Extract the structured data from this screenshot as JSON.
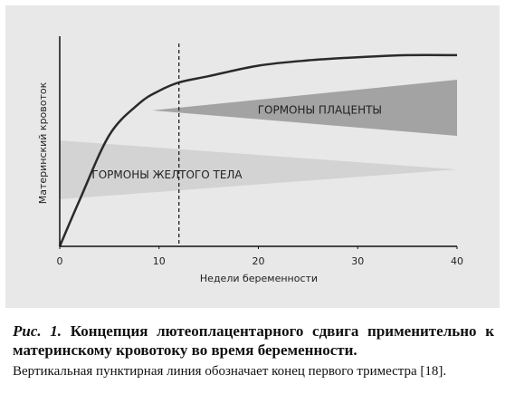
{
  "chart_data": {
    "type": "line",
    "xlabel": "Недели беременности",
    "ylabel": "Материнский кровоток",
    "xlim": [
      0,
      40
    ],
    "xticks": [
      0,
      10,
      20,
      30,
      40
    ],
    "ylim": [
      0,
      100
    ],
    "series": [
      {
        "color": "#2a2a2a",
        "x": [
          0,
          2,
          5,
          8,
          10,
          12,
          15,
          20,
          25,
          30,
          35,
          40
        ],
        "values": [
          0,
          22,
          53,
          68,
          74,
          78,
          81,
          86,
          88.5,
          90,
          91,
          91
        ]
      }
    ],
    "areas": [
      {
        "name": "ГОРМОНЫ ПЛАЦЕНТЫ",
        "color": "#a3a3a3",
        "x": [
          9.3,
          40
        ],
        "upper": [
          64.7,
          79.3
        ],
        "lower": [
          64.7,
          52.6
        ]
      },
      {
        "name": "ГОРМОНЫ ЖЕЛТОГО ТЕЛА",
        "color": "#d3d3d3",
        "x": [
          0,
          40
        ],
        "upper": [
          50.4,
          36.6
        ],
        "lower": [
          22.4,
          36.6
        ]
      }
    ],
    "vline": 12
  },
  "caption": {
    "label": "Рис. 1.",
    "title": "Концепция лютеоплацентарного сдвига применительно к материнскому кровотоку во время беременности.",
    "note": "Вертикальная пунктирная линия обозначает конец первого триместра [18]."
  }
}
